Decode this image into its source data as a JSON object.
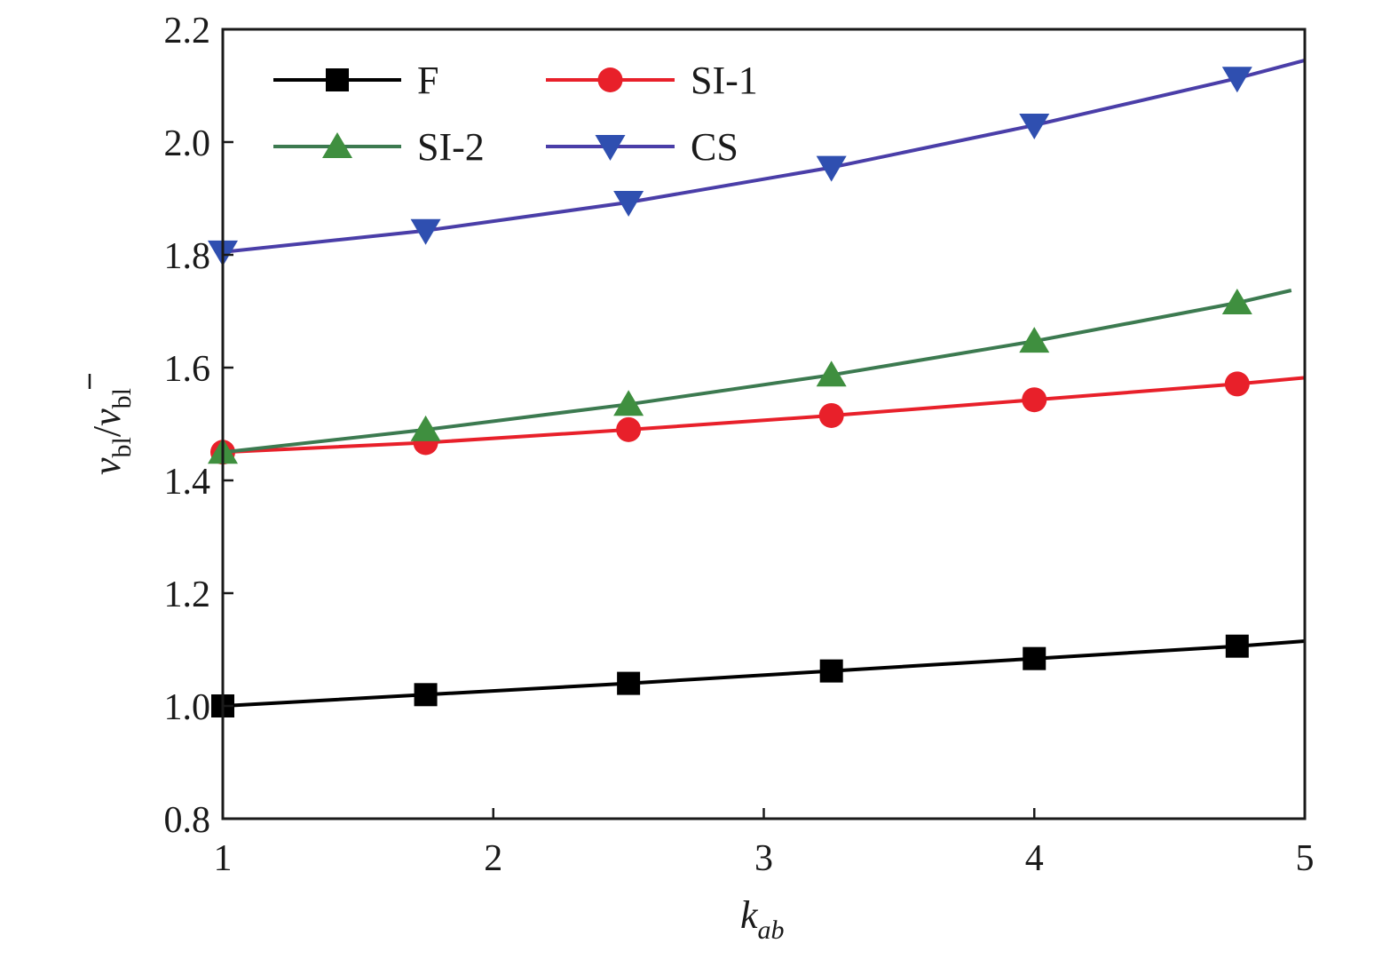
{
  "chart_data": {
    "type": "line",
    "xlabel": {
      "main": "k",
      "sub": "ab"
    },
    "ylabel": {
      "main": "v",
      "sub": "bl",
      "sep": "/",
      "sub2": "bl"
    },
    "xlim": [
      1,
      5
    ],
    "ylim": [
      0.8,
      2.2
    ],
    "xticks": [
      1,
      2,
      3,
      4,
      5
    ],
    "xtick_labels": [
      "1",
      "2",
      "3",
      "4",
      "5"
    ],
    "yticks": [
      0.8,
      1.0,
      1.2,
      1.4,
      1.6,
      1.8,
      2.0,
      2.2
    ],
    "ytick_labels": [
      "0.8",
      "1.0",
      "1.2",
      "1.4",
      "1.6",
      "1.8",
      "2.0",
      "2.2"
    ],
    "grid": false,
    "legend_position": "top-left",
    "series": [
      {
        "name": "F",
        "color": "#000000",
        "marker": "square",
        "x": [
          1,
          1.75,
          2.5,
          3.25,
          4,
          4.75
        ],
        "y": [
          1.0,
          1.02,
          1.04,
          1.062,
          1.084,
          1.106
        ],
        "line_end": [
          5,
          1.115
        ]
      },
      {
        "name": "SI-1",
        "color": "#e8202a",
        "marker": "circle",
        "x": [
          1,
          1.75,
          2.5,
          3.25,
          4,
          4.75
        ],
        "y": [
          1.45,
          1.467,
          1.49,
          1.515,
          1.543,
          1.571
        ],
        "line_end": [
          5,
          1.582
        ]
      },
      {
        "name": "SI-2",
        "color": "#3c7a50",
        "marker_color": "#3f8f3f",
        "marker": "triangle-up",
        "x": [
          1,
          1.75,
          2.5,
          3.25,
          4,
          4.75
        ],
        "y": [
          1.45,
          1.49,
          1.535,
          1.587,
          1.647,
          1.715
        ],
        "line_end": [
          4.95,
          1.737
        ]
      },
      {
        "name": "CS",
        "color": "#4a3ea8",
        "marker_color": "#2f4fb0",
        "marker": "triangle-down",
        "x": [
          1,
          1.75,
          2.5,
          3.25,
          4,
          4.75
        ],
        "y": [
          1.805,
          1.843,
          1.893,
          1.955,
          2.03,
          2.113
        ],
        "line_end": [
          5,
          2.145
        ]
      }
    ]
  }
}
